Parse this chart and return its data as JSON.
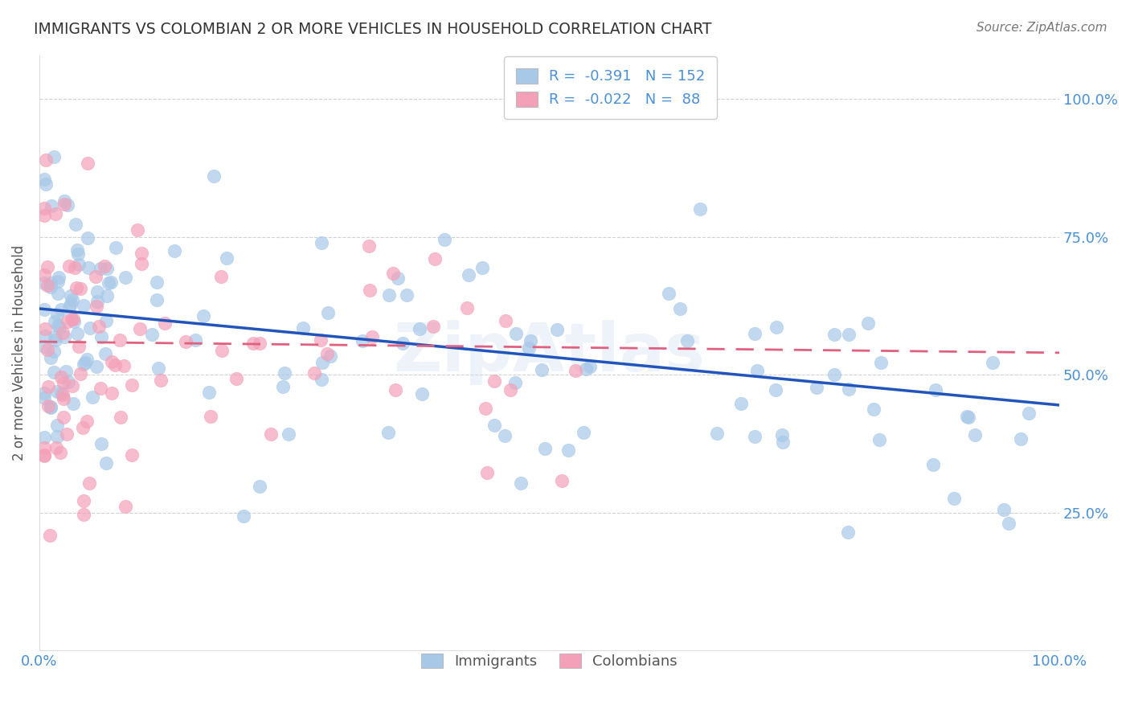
{
  "title": "IMMIGRANTS VS COLOMBIAN 2 OR MORE VEHICLES IN HOUSEHOLD CORRELATION CHART",
  "source": "Source: ZipAtlas.com",
  "ylabel": "2 or more Vehicles in Household",
  "ytick_labels": [
    "25.0%",
    "50.0%",
    "75.0%",
    "100.0%"
  ],
  "ytick_values": [
    0.25,
    0.5,
    0.75,
    1.0
  ],
  "xlim": [
    0.0,
    1.0
  ],
  "ylim": [
    0.0,
    1.08
  ],
  "blue_color": "#a8c8e8",
  "pink_color": "#f4a0b8",
  "blue_line_color": "#2255bb",
  "pink_line_color": "#e06080",
  "blue_R": -0.391,
  "blue_N": 152,
  "pink_R": -0.022,
  "pink_N": 88,
  "blue_intercept": 0.62,
  "blue_slope": -0.175,
  "pink_intercept": 0.56,
  "pink_slope": -0.02,
  "watermark": "ZipAtlas",
  "background_color": "#ffffff",
  "grid_color": "#cccccc",
  "title_color": "#333333",
  "tick_label_color_right": "#4a90d9",
  "tick_label_color_bottom": "#4a90d9"
}
